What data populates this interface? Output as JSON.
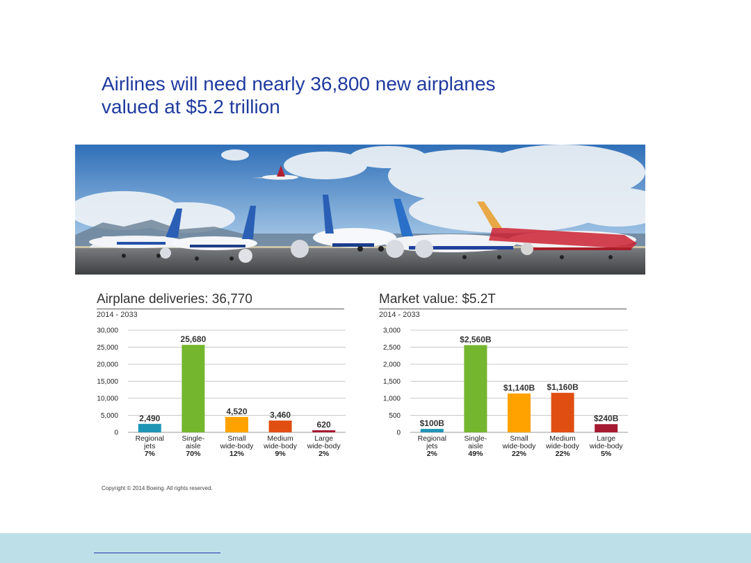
{
  "headline": {
    "line1": "Airlines will need nearly 36,800 new airplanes",
    "line2": "valued at $5.2 trillion"
  },
  "copyright": "Copyright © 2014 Boeing. All rights reserved.",
  "colors": {
    "headline": "#1f3a9e",
    "footer_band": "#bde0e8",
    "bars": [
      "#1e95b5",
      "#74b62e",
      "#ffa200",
      "#e04e12",
      "#a51a32"
    ]
  },
  "chart_data": [
    {
      "type": "bar",
      "title": "Airplane deliveries: 36,770",
      "subtitle": "2014 - 2033",
      "categories": [
        "Regional jets",
        "Single-aisle",
        "Small wide-body",
        "Medium wide-body",
        "Large wide-body"
      ],
      "category_lines": [
        [
          "Regional",
          "jets"
        ],
        [
          "Single-",
          "aisle"
        ],
        [
          "Small",
          "wide-body"
        ],
        [
          "Medium",
          "wide-body"
        ],
        [
          "Large",
          "wide-body"
        ]
      ],
      "shares": [
        "7%",
        "70%",
        "12%",
        "9%",
        "2%"
      ],
      "values": [
        2490,
        25680,
        4520,
        3460,
        620
      ],
      "value_labels": [
        "2,490",
        "25,680",
        "4,520",
        "3,460",
        "620"
      ],
      "ylim": [
        0,
        30000
      ],
      "yticks": [
        0,
        5000,
        10000,
        15000,
        20000,
        25000,
        30000
      ],
      "ytick_labels": [
        "0",
        "5,000",
        "10,000",
        "15,000",
        "20,000",
        "25,000",
        "30,000"
      ],
      "grid": true,
      "xlabel": "",
      "ylabel": ""
    },
    {
      "type": "bar",
      "title": "Market value: $5.2T",
      "subtitle": "2014 - 2033",
      "categories": [
        "Regional jets",
        "Single-aisle",
        "Small wide-body",
        "Medium wide-body",
        "Large wide-body"
      ],
      "category_lines": [
        [
          "Regional",
          "jets"
        ],
        [
          "Single-",
          "aisle"
        ],
        [
          "Small",
          "wide-body"
        ],
        [
          "Medium",
          "wide-body"
        ],
        [
          "Large",
          "wide-body"
        ]
      ],
      "shares": [
        "2%",
        "49%",
        "22%",
        "22%",
        "5%"
      ],
      "values": [
        100,
        2560,
        1140,
        1160,
        240
      ],
      "value_labels": [
        "$100B",
        "$2,560B",
        "$1,140B",
        "$1,160B",
        "$240B"
      ],
      "ylim": [
        0,
        3000
      ],
      "yticks": [
        0,
        500,
        1000,
        1500,
        2000,
        2500,
        3000
      ],
      "ytick_labels": [
        "0",
        "500",
        "1,000",
        "1,500",
        "2,000",
        "2,500",
        "3,000"
      ],
      "grid": true,
      "xlabel": "",
      "ylabel": ""
    }
  ]
}
